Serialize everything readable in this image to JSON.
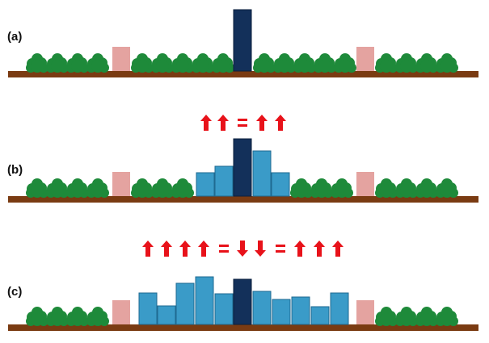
{
  "panels": [
    {
      "label": "(a)",
      "equation": [],
      "scene": {
        "tree_groups": [
          4,
          5,
          4,
          4
        ],
        "old_buildings": 2,
        "new_blocks": [],
        "tower": 1
      }
    },
    {
      "label": "(b)",
      "equation": [
        "up",
        "up",
        "=",
        "up",
        "up"
      ],
      "scene": {
        "tree_groups": [
          4,
          3,
          3,
          4
        ],
        "old_buildings": 2,
        "new_blocks": [
          2,
          3,
          4,
          5,
          3
        ],
        "tower": 1
      }
    },
    {
      "label": "(c)",
      "equation": [
        "up",
        "up",
        "up",
        "up",
        "=",
        "down",
        "down",
        "=",
        "up",
        "up",
        "up"
      ],
      "scene": {
        "tree_groups": [
          4,
          4
        ],
        "old_buildings": 2,
        "new_blocks": [
          3,
          2,
          4,
          5,
          3,
          4,
          3,
          3,
          2,
          3
        ],
        "tower": 1
      }
    }
  ],
  "colors": {
    "ground": "#7a3b12",
    "tree": "#1e8a3a",
    "tree_dark": "#0f5c23",
    "old_building": "#e4a3a0",
    "new_block": "#3a9bc8",
    "new_block_edge": "#1f6a91",
    "tower": "#13305a",
    "arrow": "#e8121a"
  }
}
